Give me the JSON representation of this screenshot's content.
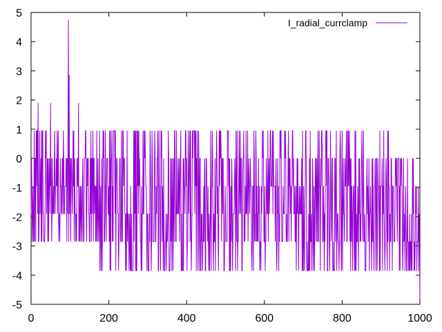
{
  "chart_data": {
    "type": "line",
    "title": "",
    "xlabel": "",
    "ylabel": "",
    "xlim": [
      0,
      1000
    ],
    "ylim": [
      -5,
      5
    ],
    "x_ticks": [
      0,
      200,
      400,
      600,
      800,
      1000
    ],
    "y_ticks": [
      -5,
      -4,
      -3,
      -2,
      -1,
      0,
      1,
      2,
      3,
      4,
      5
    ],
    "x_tick_labels": [
      "0",
      "200",
      "400",
      "600",
      "800",
      "1000"
    ],
    "y_tick_labels": [
      "-5",
      "-4",
      "-3",
      "-2",
      "-1",
      "0",
      "1",
      "2",
      "3",
      "4",
      "5"
    ],
    "grid": false,
    "legend_position": "top-right",
    "series": [
      {
        "name": "I_radial_currclamp",
        "color": "#9400d3",
        "x_range": [
          0,
          1000
        ],
        "point_count": 1001,
        "value_levels": [
          -4.8,
          -3.85,
          -2.85,
          -1.9,
          -0.95,
          0,
          0.95,
          1.9,
          2.85,
          4.75
        ],
        "segments": [
          {
            "x": [
              0,
              170
            ],
            "low": -2.85,
            "high": 0.95
          },
          {
            "x": [
              170,
              560
            ],
            "low": -3.85,
            "high": 0.95
          },
          {
            "x": [
              560,
              920
            ],
            "low": -3.85,
            "high": 0.95
          },
          {
            "x": [
              920,
              1000
            ],
            "low": -3.85,
            "high": 0
          }
        ],
        "highlights": [
          {
            "x": 18,
            "y": 1.9
          },
          {
            "x": 50,
            "y": 1.9
          },
          {
            "x": 96,
            "y": 4.75
          },
          {
            "x": 98,
            "y": 2.85
          },
          {
            "x": 122,
            "y": 1.9
          },
          {
            "x": 1000,
            "y": -4.8
          }
        ]
      }
    ]
  }
}
